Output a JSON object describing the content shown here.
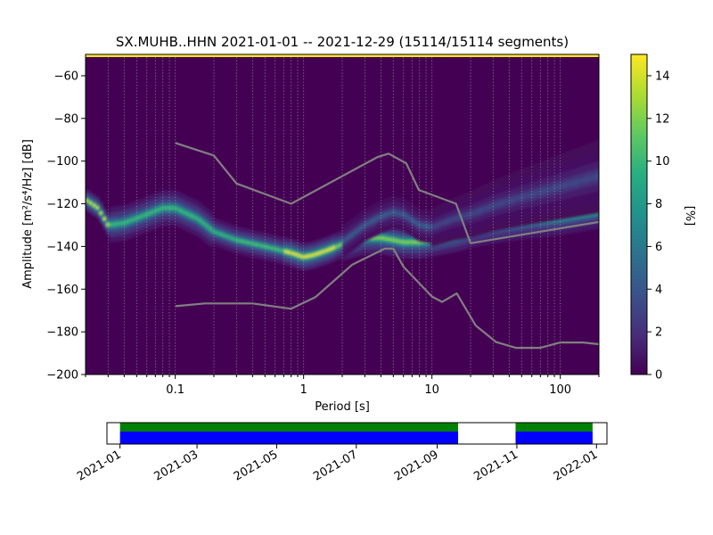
{
  "chart_data": [
    {
      "type": "heatmap",
      "title": "SX.MUHB..HHN   2021-01-01 -- 2021-12-29  (15114/15114 segments)",
      "xlabel": "Period [s]",
      "ylabel": "Amplitude [m²/s⁴/Hz] [dB]",
      "xscale": "log",
      "xlim": [
        0.02,
        200
      ],
      "ylim": [
        -200,
        -50
      ],
      "x_ticks": [
        0.1,
        1,
        10,
        100
      ],
      "x_tick_labels": [
        "0.1",
        "1",
        "10",
        "100"
      ],
      "y_ticks": [
        -200,
        -180,
        -160,
        -140,
        -120,
        -100,
        -80,
        -60
      ],
      "y_tick_labels": [
        "−200",
        "−180",
        "−160",
        "−140",
        "−120",
        "−100",
        "−80",
        "−60"
      ],
      "grid": true,
      "colormap": "viridis",
      "colorbar": {
        "label": "[%]",
        "range": [
          0,
          15
        ],
        "ticks": [
          0,
          2,
          4,
          6,
          8,
          10,
          12,
          14
        ],
        "tick_labels": [
          "0",
          "2",
          "4",
          "6",
          "8",
          "10",
          "12",
          "14"
        ]
      },
      "mode_curve": {
        "x": [
          0.02,
          0.025,
          0.03,
          0.04,
          0.06,
          0.08,
          0.1,
          0.15,
          0.2,
          0.3,
          0.5,
          0.8,
          1.0,
          1.2,
          1.5,
          2,
          3,
          4,
          5,
          6,
          8,
          10,
          15,
          20,
          30,
          50,
          100,
          200
        ],
        "y": [
          -118,
          -122,
          -130,
          -129,
          -125,
          -122,
          -122,
          -127,
          -133,
          -137,
          -140,
          -143,
          -145,
          -144,
          -142,
          -139,
          -136,
          -136,
          -137,
          -138,
          -138,
          -137,
          -135,
          -133,
          -131,
          -129,
          -127,
          -124
        ]
      },
      "upper_branch": {
        "x": [
          2,
          3,
          4,
          5,
          6,
          8,
          10,
          15,
          20,
          30,
          50,
          100,
          200
        ],
        "y": [
          -138,
          -130,
          -126,
          -124,
          -125,
          -130,
          -131,
          -127,
          -125,
          -121,
          -117,
          -112,
          -107
        ]
      },
      "series": [
        {
          "x": [
            0.1,
            0.2,
            0.3,
            0.8,
            3.8,
            4.6,
            6.3,
            7.9,
            15.4,
            20,
            200
          ],
          "y": [
            -91.5,
            -97.4,
            -110.5,
            -120,
            -98,
            -96.5,
            -101,
            -113.5,
            -120,
            -138.5,
            -128.5
          ]
        },
        {
          "x": [
            0.1,
            0.17,
            0.4,
            0.8,
            1.24,
            2.4,
            4.3,
            5,
            6,
            10,
            12,
            15.6,
            21.9,
            31.6,
            45,
            70,
            100,
            150,
            200
          ],
          "y": [
            -168,
            -166.7,
            -166.7,
            -169.2,
            -163.7,
            -148.5,
            -141,
            -141,
            -149.5,
            -163.5,
            -166,
            -162,
            -177,
            -184.8,
            -187.5,
            -187.5,
            -185,
            -185,
            -185.8
          ]
        }
      ]
    },
    {
      "type": "timeline",
      "x_tick_labels": [
        "2021-01",
        "2021-03",
        "2021-05",
        "2021-07",
        "2021-09",
        "2021-11",
        "2022-01"
      ],
      "xlim": [
        "2020-12-22",
        "2022-01-09"
      ],
      "coverage_periods": [
        {
          "start": "2021-01-01",
          "end": "2021-09-17"
        },
        {
          "start": "2021-10-31",
          "end": "2021-12-29"
        }
      ],
      "colors": {
        "top_band": "#008000",
        "bottom_band": "#0000ff"
      }
    }
  ]
}
